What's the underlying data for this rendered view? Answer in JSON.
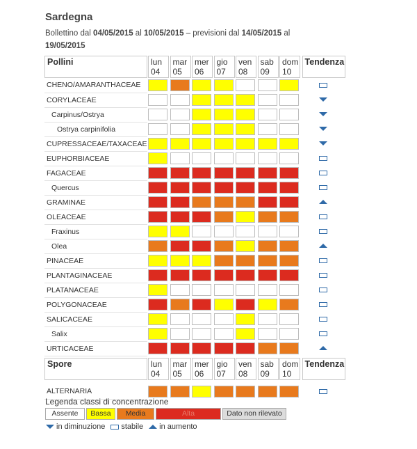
{
  "header": {
    "title": "Sardegna",
    "bollettino_prefix": "Bollettino dal ",
    "date_from": "04/05/2015",
    "word_al": " al ",
    "date_to": "10/05/2015",
    "previsioni_prefix": " – previsioni dal ",
    "prev_from": "14/05/2015",
    "word_al2": " al ",
    "prev_to": "19/05/2015"
  },
  "days": [
    {
      "day": "lun",
      "num": "04"
    },
    {
      "day": "mar",
      "num": "05"
    },
    {
      "day": "mer",
      "num": "06"
    },
    {
      "day": "gio",
      "num": "07"
    },
    {
      "day": "ven",
      "num": "08"
    },
    {
      "day": "sab",
      "num": "09"
    },
    {
      "day": "dom",
      "num": "10"
    }
  ],
  "pollini": {
    "label": "Pollini",
    "trend_label": "Tendenza",
    "rows": [
      {
        "name": "CHENO/AMARANTHACEAE",
        "indent": 0,
        "levels": [
          1,
          2,
          1,
          1,
          0,
          0,
          1
        ],
        "trend": "stable"
      },
      {
        "name": "CORYLACEAE",
        "indent": 0,
        "levels": [
          0,
          0,
          1,
          1,
          1,
          0,
          0
        ],
        "trend": "down"
      },
      {
        "name": "Carpinus/Ostrya",
        "indent": 1,
        "levels": [
          0,
          0,
          1,
          1,
          1,
          0,
          0
        ],
        "trend": "down"
      },
      {
        "name": "Ostrya carpinifolia",
        "indent": 2,
        "levels": [
          0,
          0,
          1,
          1,
          1,
          0,
          0
        ],
        "trend": "down"
      },
      {
        "name": "CUPRESSACEAE/TAXACEAE",
        "indent": 0,
        "levels": [
          1,
          1,
          1,
          1,
          1,
          1,
          1
        ],
        "trend": "down"
      },
      {
        "name": "EUPHORBIACEAE",
        "indent": 0,
        "levels": [
          1,
          0,
          0,
          0,
          0,
          0,
          0
        ],
        "trend": "stable"
      },
      {
        "name": "FAGACEAE",
        "indent": 0,
        "levels": [
          3,
          3,
          3,
          3,
          3,
          3,
          3
        ],
        "trend": "stable"
      },
      {
        "name": "Quercus",
        "indent": 1,
        "levels": [
          3,
          3,
          3,
          3,
          3,
          3,
          3
        ],
        "trend": "stable"
      },
      {
        "name": "GRAMINAE",
        "indent": 0,
        "levels": [
          3,
          3,
          2,
          2,
          2,
          3,
          3
        ],
        "trend": "up"
      },
      {
        "name": "OLEACEAE",
        "indent": 0,
        "levels": [
          3,
          3,
          3,
          2,
          1,
          2,
          2
        ],
        "trend": "stable"
      },
      {
        "name": "Fraxinus",
        "indent": 1,
        "levels": [
          1,
          1,
          0,
          0,
          0,
          0,
          0
        ],
        "trend": "stable"
      },
      {
        "name": "Olea",
        "indent": 1,
        "levels": [
          2,
          3,
          3,
          2,
          1,
          2,
          2
        ],
        "trend": "up"
      },
      {
        "name": "PINACEAE",
        "indent": 0,
        "levels": [
          1,
          1,
          1,
          2,
          2,
          2,
          2
        ],
        "trend": "stable"
      },
      {
        "name": "PLANTAGINACEAE",
        "indent": 0,
        "levels": [
          3,
          3,
          3,
          3,
          3,
          3,
          3
        ],
        "trend": "stable"
      },
      {
        "name": "PLATANACEAE",
        "indent": 0,
        "levels": [
          1,
          0,
          0,
          0,
          0,
          0,
          0
        ],
        "trend": "stable"
      },
      {
        "name": "POLYGONACEAE",
        "indent": 0,
        "levels": [
          3,
          2,
          3,
          1,
          3,
          1,
          2
        ],
        "trend": "stable"
      },
      {
        "name": "SALICACEAE",
        "indent": 0,
        "levels": [
          1,
          0,
          0,
          0,
          1,
          0,
          0
        ],
        "trend": "stable"
      },
      {
        "name": "Salix",
        "indent": 1,
        "levels": [
          1,
          0,
          0,
          0,
          1,
          0,
          0
        ],
        "trend": "stable"
      },
      {
        "name": "URTICACEAE",
        "indent": 0,
        "levels": [
          3,
          3,
          3,
          3,
          3,
          2,
          2
        ],
        "trend": "up"
      }
    ]
  },
  "spore": {
    "label": "Spore",
    "trend_label": "Tendenza",
    "rows": [
      {
        "name": "ALTERNARIA",
        "indent": 0,
        "levels": [
          2,
          2,
          1,
          2,
          2,
          2,
          2
        ],
        "trend": "stable"
      }
    ]
  },
  "legend": {
    "title": "Legenda classi di concentrazione",
    "classes": [
      {
        "label": "Assente",
        "color": "#ffffff"
      },
      {
        "label": "Bassa",
        "color": "#ffff00"
      },
      {
        "label": "Media",
        "color": "#e87a1d"
      },
      {
        "label": "Alta",
        "color": "#dc2b1f"
      },
      {
        "label": "Dato non rilevato",
        "color": "#dcdcdc"
      }
    ],
    "trend_down": "in diminuzione",
    "trend_stable": "stabile",
    "trend_up": "in aumento"
  }
}
